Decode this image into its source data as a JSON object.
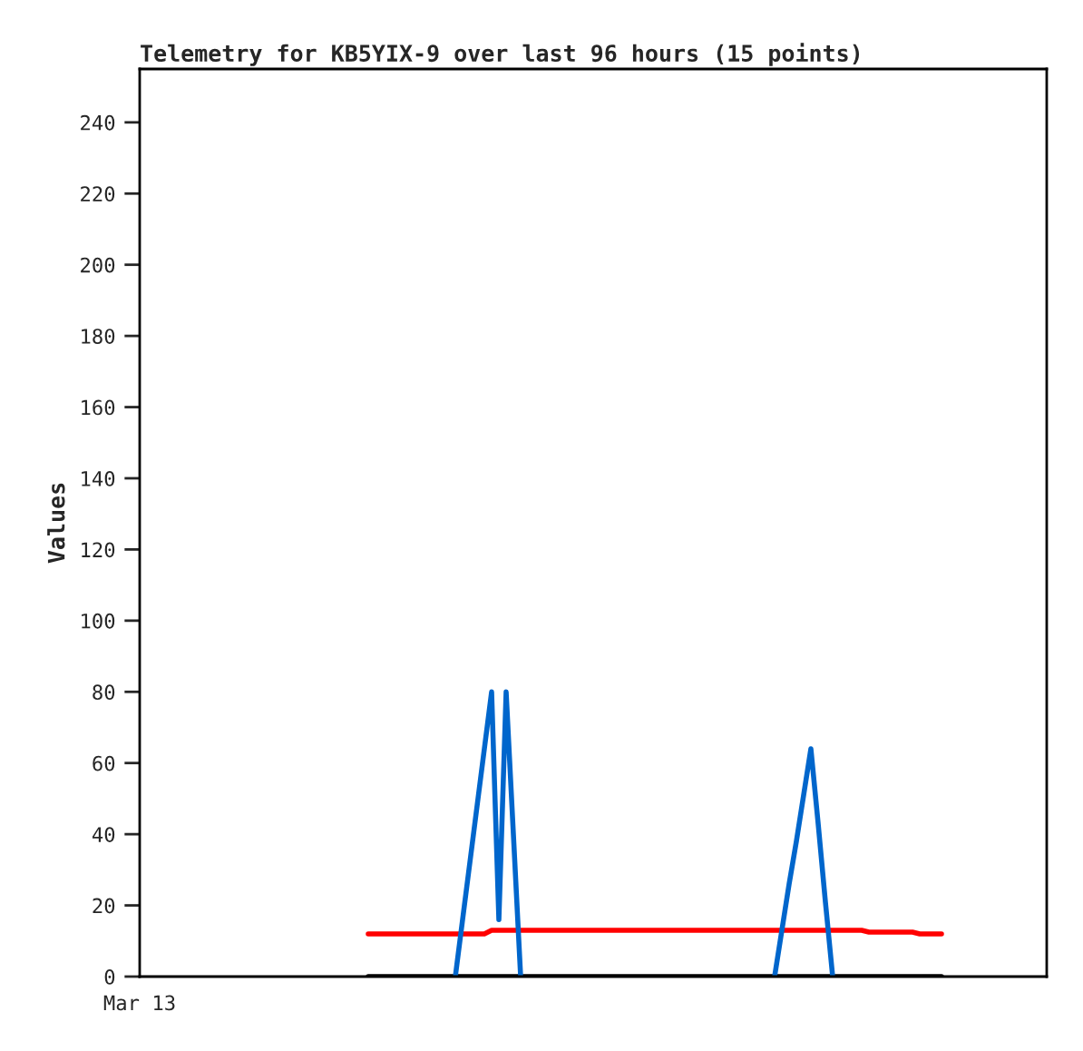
{
  "chart_data": {
    "type": "line",
    "title": "Telemetry for KB5YIX-9 over last 96 hours (15 points)",
    "ylabel": "Values",
    "annotations": [
      "Mar 13"
    ],
    "categories": [
      null,
      null,
      null,
      null,
      null,
      null,
      null,
      null,
      null,
      null,
      null,
      null,
      null,
      null,
      null,
      null,
      null,
      null,
      null,
      null,
      null,
      null,
      null,
      null,
      null,
      null,
      null,
      null,
      null,
      null,
      null,
      null,
      null,
      null,
      null,
      null,
      null,
      null,
      null,
      null,
      null,
      null,
      null,
      null,
      null,
      null,
      null,
      null,
      null,
      null,
      null,
      null,
      null,
      null,
      null,
      null,
      null,
      null,
      null,
      null,
      null,
      null,
      null,
      null,
      null,
      null,
      null,
      null,
      null,
      null,
      null,
      null,
      null,
      null,
      null,
      null,
      null,
      null,
      null,
      null,
      null,
      null,
      null,
      null,
      null,
      null,
      null,
      null,
      null,
      null,
      null,
      null,
      null,
      null,
      null,
      null,
      null,
      null,
      null,
      null,
      null,
      null,
      null,
      null,
      null,
      null,
      null,
      null,
      null,
      null,
      null,
      null,
      null,
      null,
      null,
      null,
      null,
      null,
      null,
      null,
      null,
      null,
      null,
      null,
      null
    ],
    "ylim": [
      0,
      255
    ],
    "yticks": [
      0,
      20,
      40,
      60,
      80,
      100,
      120,
      140,
      160,
      180,
      200,
      220,
      240
    ],
    "grid": false,
    "series": [
      {
        "color": "#000000",
        "values": [
          null,
          null,
          null,
          null,
          null,
          null,
          null,
          null,
          null,
          null,
          null,
          null,
          null,
          null,
          null,
          null,
          null,
          null,
          null,
          null,
          null,
          null,
          null,
          null,
          null,
          null,
          null,
          null,
          null,
          null,
          null,
          0,
          0,
          0,
          0,
          0,
          0,
          0,
          0,
          0,
          0,
          0,
          0,
          0,
          0,
          0,
          0,
          0,
          0,
          0,
          0,
          0,
          0,
          0,
          0,
          0,
          0,
          0,
          0,
          0,
          0,
          0,
          0,
          0,
          0,
          0,
          0,
          0,
          0,
          0,
          0,
          0,
          0,
          0,
          0,
          0,
          0,
          0,
          0,
          0,
          0,
          0,
          0,
          0,
          0,
          0,
          0,
          0,
          0,
          0,
          0,
          0,
          0,
          0,
          0,
          0,
          0,
          0,
          0,
          0,
          0,
          0,
          0,
          0,
          0,
          0,
          0,
          0,
          0,
          0,
          0,
          null,
          null,
          null,
          null,
          null,
          null,
          null,
          null,
          null,
          null,
          null,
          null,
          null,
          null
        ]
      },
      {
        "color": "#ff0000",
        "values": [
          null,
          null,
          null,
          null,
          null,
          null,
          null,
          null,
          null,
          null,
          null,
          null,
          null,
          null,
          null,
          null,
          null,
          null,
          null,
          null,
          null,
          null,
          null,
          null,
          null,
          null,
          null,
          null,
          null,
          null,
          null,
          12,
          12,
          12,
          12,
          12,
          12,
          12,
          12,
          12,
          12,
          12,
          12,
          12,
          12,
          12,
          12,
          12,
          13,
          13,
          13,
          13,
          13,
          13,
          13,
          13,
          13,
          13,
          13,
          13,
          13,
          13,
          13,
          13,
          13,
          13,
          13,
          13,
          13,
          13,
          13,
          13,
          13,
          13,
          13,
          13,
          13,
          13,
          13,
          13,
          13,
          13,
          13,
          13,
          13,
          13,
          13,
          13,
          13,
          13,
          13,
          13,
          13,
          13,
          13,
          13,
          13,
          13,
          13,
          13,
          12.5,
          12.5,
          12.5,
          12.5,
          12.5,
          12.5,
          12.5,
          12,
          12,
          12,
          12,
          null,
          null,
          null,
          null,
          null,
          null,
          null,
          null,
          null,
          null,
          null,
          null,
          null,
          null
        ]
      },
      {
        "color": "#0066cc",
        "values": [
          null,
          null,
          null,
          null,
          null,
          null,
          null,
          null,
          null,
          null,
          null,
          null,
          null,
          null,
          null,
          null,
          null,
          null,
          null,
          null,
          null,
          null,
          null,
          null,
          null,
          null,
          null,
          null,
          null,
          null,
          null,
          null,
          null,
          null,
          null,
          null,
          null,
          null,
          null,
          null,
          null,
          null,
          null,
          0,
          16,
          32,
          48,
          64,
          80,
          16,
          80,
          40,
          0,
          null,
          null,
          null,
          null,
          null,
          null,
          null,
          null,
          null,
          null,
          null,
          null,
          null,
          null,
          null,
          null,
          null,
          null,
          null,
          null,
          null,
          null,
          null,
          null,
          null,
          null,
          null,
          null,
          null,
          null,
          null,
          null,
          null,
          null,
          0,
          13,
          26,
          38,
          51,
          64,
          43,
          21,
          0,
          null,
          null,
          null,
          null,
          null,
          null,
          null,
          null,
          null,
          null,
          null,
          null,
          null,
          null,
          null,
          null,
          null,
          null,
          null,
          null,
          null,
          null,
          null,
          null,
          null,
          null,
          null,
          null,
          null
        ]
      }
    ]
  }
}
